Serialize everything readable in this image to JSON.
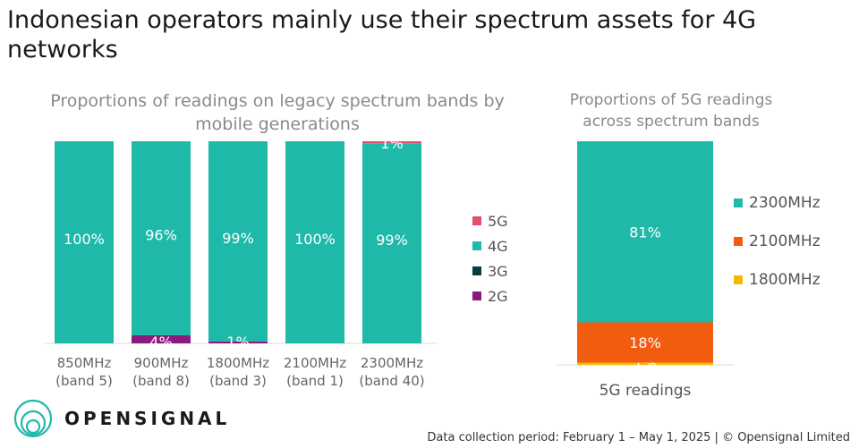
{
  "page_title": "Indonesian operators mainly use their spectrum assets for 4G networks",
  "brand": {
    "logo_text": "OPENSIGNAL"
  },
  "footer": "Data collection period: February 1 – May 1, 2025 | © Opensignal Limited",
  "colors": {
    "5G": "#e0506e",
    "4G": "#1fb9a9",
    "3G": "#0b3d3d",
    "2G": "#8b1a7e",
    "2300MHz": "#1fb9a9",
    "2100MHz": "#f25c0f",
    "1800MHz": "#f5b800"
  },
  "chart_data": [
    {
      "type": "bar",
      "stacked": true,
      "title": "Proportions of readings on legacy spectrum bands by mobile generations",
      "categories": [
        "850MHz (band 5)",
        "900MHz (band 8)",
        "1800MHz (band 3)",
        "2100MHz (band 1)",
        "2300MHz (band 40)"
      ],
      "category_lines": [
        [
          "850MHz",
          "(band 5)"
        ],
        [
          "900MHz",
          "(band 8)"
        ],
        [
          "1800MHz",
          "(band 3)"
        ],
        [
          "2100MHz",
          "(band 1)"
        ],
        [
          "2300MHz",
          "(band 40)"
        ]
      ],
      "series": [
        {
          "name": "2G",
          "values": [
            0,
            4,
            1,
            0,
            0
          ],
          "labels": [
            "",
            "4%",
            "1%",
            "",
            ""
          ]
        },
        {
          "name": "3G",
          "values": [
            0,
            0,
            0,
            0,
            0
          ],
          "labels": [
            "",
            "",
            "",
            "",
            ""
          ]
        },
        {
          "name": "4G",
          "values": [
            100,
            96,
            99,
            100,
            99
          ],
          "labels": [
            "100%",
            "96%",
            "99%",
            "100%",
            "99%"
          ]
        },
        {
          "name": "5G",
          "values": [
            0,
            0,
            0,
            0,
            1
          ],
          "labels": [
            "",
            "",
            "",
            "",
            "1%"
          ]
        }
      ],
      "legend_order": [
        "5G",
        "4G",
        "3G",
        "2G"
      ],
      "legend_position": "right",
      "ylim": [
        0,
        100
      ]
    },
    {
      "type": "bar",
      "stacked": true,
      "title": "Proportions of 5G readings across spectrum bands",
      "categories": [
        "5G readings"
      ],
      "series": [
        {
          "name": "1800MHz",
          "values": [
            1
          ],
          "labels": [
            "1%"
          ]
        },
        {
          "name": "2100MHz",
          "values": [
            18
          ],
          "labels": [
            "18%"
          ]
        },
        {
          "name": "2300MHz",
          "values": [
            81
          ],
          "labels": [
            "81%"
          ]
        }
      ],
      "legend_order": [
        "2300MHz",
        "2100MHz",
        "1800MHz"
      ],
      "legend_position": "right",
      "ylim": [
        0,
        100
      ]
    }
  ]
}
